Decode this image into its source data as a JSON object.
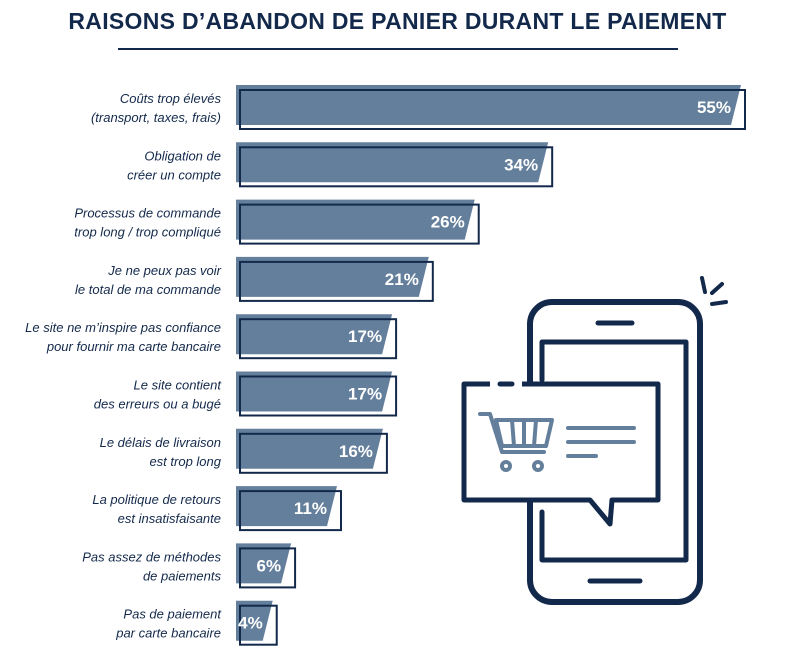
{
  "chart_data": {
    "type": "bar",
    "orientation": "horizontal",
    "title": "RAISONS D’ABANDON DE PANIER DURANT LE PAIEMENT",
    "categories": [
      [
        "Coûts trop élevés",
        "(transport, taxes, frais)"
      ],
      [
        "Obligation de",
        "créer un compte"
      ],
      [
        "Processus de commande",
        "trop long / trop compliqué"
      ],
      [
        "Je ne peux pas voir",
        "le total de ma commande"
      ],
      [
        "Le site ne m’inspire pas confiance",
        "pour fournir ma carte bancaire"
      ],
      [
        "Le site contient",
        "des erreurs ou a bugé"
      ],
      [
        "Le délais de livraison",
        "est trop long"
      ],
      [
        "La politique de retours",
        "est insatisfaisante"
      ],
      [
        "Pas assez de méthodes",
        "de paiements"
      ],
      [
        "Pas de paiement",
        "par carte bancaire"
      ]
    ],
    "values": [
      55,
      34,
      26,
      21,
      17,
      17,
      16,
      11,
      6,
      4
    ],
    "value_labels": [
      "55%",
      "34%",
      "26%",
      "21%",
      "17%",
      "17%",
      "16%",
      "11%",
      "6%",
      "4%"
    ],
    "unit": "%",
    "grid": false,
    "legend": "none"
  },
  "colors": {
    "bar_fill": "#647f9c",
    "bar_outline": "#13294b",
    "title": "#13294b",
    "value_text": "#ffffff"
  },
  "illustration": {
    "icons": [
      "smartphone-icon",
      "shopping-cart-icon",
      "chat-bubble-icon"
    ]
  }
}
